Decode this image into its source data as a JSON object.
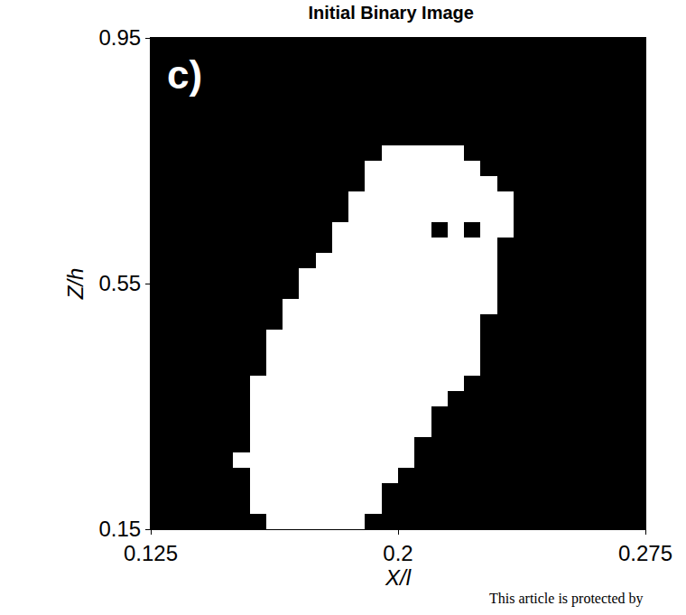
{
  "chart_data": {
    "type": "heatmap",
    "title": "Initial Binary Image",
    "x_label": "X/l",
    "y_label": "Z/h",
    "annotations": [
      "c)",
      "This article is protected by"
    ],
    "colors": [
      "#000000",
      "#ffffff"
    ],
    "xlim": [
      0.125,
      0.275
    ],
    "ylim": [
      0.15,
      0.95
    ],
    "xticks": [
      0.125,
      0.2,
      0.275
    ],
    "yticks": [
      0.15,
      0.55,
      0.95
    ],
    "x": [
      0.1275,
      0.1325,
      0.1375,
      0.1425,
      0.1475,
      0.1525,
      0.1575,
      0.1625,
      0.1675,
      0.1725,
      0.1775,
      0.1825,
      0.1875,
      0.1925,
      0.1975,
      0.2025,
      0.2075,
      0.2125,
      0.2175,
      0.2225,
      0.2275,
      0.2325,
      0.2375,
      0.2425,
      0.2475,
      0.2525,
      0.2575,
      0.2625,
      0.2675,
      0.2725
    ],
    "y": [
      0.1625,
      0.1875,
      0.2125,
      0.2375,
      0.2625,
      0.2875,
      0.3125,
      0.3375,
      0.3625,
      0.3875,
      0.4125,
      0.4375,
      0.4625,
      0.4875,
      0.5125,
      0.5375,
      0.5625,
      0.5875,
      0.6125,
      0.6375,
      0.6625,
      0.6875,
      0.7125,
      0.7375,
      0.7625,
      0.7875,
      0.8125,
      0.8375,
      0.8625,
      0.8875,
      0.9125,
      0.9375
    ],
    "cells": [
      [
        0,
        0,
        0,
        0,
        0,
        0,
        0,
        1,
        1,
        1,
        1,
        1,
        1,
        0,
        0,
        0,
        0,
        0,
        0,
        0,
        0,
        0,
        0,
        0,
        0,
        0,
        0,
        0,
        0,
        0
      ],
      [
        0,
        0,
        0,
        0,
        0,
        0,
        1,
        1,
        1,
        1,
        1,
        1,
        1,
        1,
        0,
        0,
        0,
        0,
        0,
        0,
        0,
        0,
        0,
        0,
        0,
        0,
        0,
        0,
        0,
        0
      ],
      [
        0,
        0,
        0,
        0,
        0,
        0,
        1,
        1,
        1,
        1,
        1,
        1,
        1,
        1,
        0,
        0,
        0,
        0,
        0,
        0,
        0,
        0,
        0,
        0,
        0,
        0,
        0,
        0,
        0,
        0
      ],
      [
        0,
        0,
        0,
        0,
        0,
        0,
        1,
        1,
        1,
        1,
        1,
        1,
        1,
        1,
        1,
        0,
        0,
        0,
        0,
        0,
        0,
        0,
        0,
        0,
        0,
        0,
        0,
        0,
        0,
        0
      ],
      [
        0,
        0,
        0,
        0,
        0,
        1,
        1,
        1,
        1,
        1,
        1,
        1,
        1,
        1,
        1,
        1,
        0,
        0,
        0,
        0,
        0,
        0,
        0,
        0,
        0,
        0,
        0,
        0,
        0,
        0
      ],
      [
        0,
        0,
        0,
        0,
        0,
        0,
        1,
        1,
        1,
        1,
        1,
        1,
        1,
        1,
        1,
        1,
        0,
        0,
        0,
        0,
        0,
        0,
        0,
        0,
        0,
        0,
        0,
        0,
        0,
        0
      ],
      [
        0,
        0,
        0,
        0,
        0,
        0,
        1,
        1,
        1,
        1,
        1,
        1,
        1,
        1,
        1,
        1,
        1,
        0,
        0,
        0,
        0,
        0,
        0,
        0,
        0,
        0,
        0,
        0,
        0,
        0
      ],
      [
        0,
        0,
        0,
        0,
        0,
        0,
        1,
        1,
        1,
        1,
        1,
        1,
        1,
        1,
        1,
        1,
        1,
        0,
        0,
        0,
        0,
        0,
        0,
        0,
        0,
        0,
        0,
        0,
        0,
        0
      ],
      [
        0,
        0,
        0,
        0,
        0,
        0,
        1,
        1,
        1,
        1,
        1,
        1,
        1,
        1,
        1,
        1,
        1,
        1,
        0,
        0,
        0,
        0,
        0,
        0,
        0,
        0,
        0,
        0,
        0,
        0
      ],
      [
        0,
        0,
        0,
        0,
        0,
        0,
        1,
        1,
        1,
        1,
        1,
        1,
        1,
        1,
        1,
        1,
        1,
        1,
        1,
        0,
        0,
        0,
        0,
        0,
        0,
        0,
        0,
        0,
        0,
        0
      ],
      [
        0,
        0,
        0,
        0,
        0,
        0,
        0,
        1,
        1,
        1,
        1,
        1,
        1,
        1,
        1,
        1,
        1,
        1,
        1,
        1,
        0,
        0,
        0,
        0,
        0,
        0,
        0,
        0,
        0,
        0
      ],
      [
        0,
        0,
        0,
        0,
        0,
        0,
        0,
        1,
        1,
        1,
        1,
        1,
        1,
        1,
        1,
        1,
        1,
        1,
        1,
        1,
        0,
        0,
        0,
        0,
        0,
        0,
        0,
        0,
        0,
        0
      ],
      [
        0,
        0,
        0,
        0,
        0,
        0,
        0,
        1,
        1,
        1,
        1,
        1,
        1,
        1,
        1,
        1,
        1,
        1,
        1,
        1,
        0,
        0,
        0,
        0,
        0,
        0,
        0,
        0,
        0,
        0
      ],
      [
        0,
        0,
        0,
        0,
        0,
        0,
        0,
        0,
        1,
        1,
        1,
        1,
        1,
        1,
        1,
        1,
        1,
        1,
        1,
        1,
        0,
        0,
        0,
        0,
        0,
        0,
        0,
        0,
        0,
        0
      ],
      [
        0,
        0,
        0,
        0,
        0,
        0,
        0,
        0,
        1,
        1,
        1,
        1,
        1,
        1,
        1,
        1,
        1,
        1,
        1,
        1,
        1,
        0,
        0,
        0,
        0,
        0,
        0,
        0,
        0,
        0
      ],
      [
        0,
        0,
        0,
        0,
        0,
        0,
        0,
        0,
        0,
        1,
        1,
        1,
        1,
        1,
        1,
        1,
        1,
        1,
        1,
        1,
        1,
        0,
        0,
        0,
        0,
        0,
        0,
        0,
        0,
        0
      ],
      [
        0,
        0,
        0,
        0,
        0,
        0,
        0,
        0,
        0,
        1,
        1,
        1,
        1,
        1,
        1,
        1,
        1,
        1,
        1,
        1,
        1,
        0,
        0,
        0,
        0,
        0,
        0,
        0,
        0,
        0
      ],
      [
        0,
        0,
        0,
        0,
        0,
        0,
        0,
        0,
        0,
        0,
        1,
        1,
        1,
        1,
        1,
        1,
        1,
        1,
        1,
        1,
        1,
        0,
        0,
        0,
        0,
        0,
        0,
        0,
        0,
        0
      ],
      [
        0,
        0,
        0,
        0,
        0,
        0,
        0,
        0,
        0,
        0,
        0,
        1,
        1,
        1,
        1,
        1,
        1,
        1,
        1,
        1,
        1,
        0,
        0,
        0,
        0,
        0,
        0,
        0,
        0,
        0
      ],
      [
        0,
        0,
        0,
        0,
        0,
        0,
        0,
        0,
        0,
        0,
        0,
        1,
        1,
        1,
        1,
        1,
        1,
        0,
        1,
        0,
        1,
        1,
        0,
        0,
        0,
        0,
        0,
        0,
        0,
        0
      ],
      [
        0,
        0,
        0,
        0,
        0,
        0,
        0,
        0,
        0,
        0,
        0,
        0,
        1,
        1,
        1,
        1,
        1,
        1,
        1,
        1,
        1,
        1,
        0,
        0,
        0,
        0,
        0,
        0,
        0,
        0
      ],
      [
        0,
        0,
        0,
        0,
        0,
        0,
        0,
        0,
        0,
        0,
        0,
        0,
        1,
        1,
        1,
        1,
        1,
        1,
        1,
        1,
        1,
        1,
        0,
        0,
        0,
        0,
        0,
        0,
        0,
        0
      ],
      [
        0,
        0,
        0,
        0,
        0,
        0,
        0,
        0,
        0,
        0,
        0,
        0,
        0,
        1,
        1,
        1,
        1,
        1,
        1,
        1,
        1,
        0,
        0,
        0,
        0,
        0,
        0,
        0,
        0,
        0
      ],
      [
        0,
        0,
        0,
        0,
        0,
        0,
        0,
        0,
        0,
        0,
        0,
        0,
        0,
        1,
        1,
        1,
        1,
        1,
        1,
        1,
        0,
        0,
        0,
        0,
        0,
        0,
        0,
        0,
        0,
        0
      ],
      [
        0,
        0,
        0,
        0,
        0,
        0,
        0,
        0,
        0,
        0,
        0,
        0,
        0,
        0,
        1,
        1,
        1,
        1,
        1,
        0,
        0,
        0,
        0,
        0,
        0,
        0,
        0,
        0,
        0,
        0
      ],
      [
        0,
        0,
        0,
        0,
        0,
        0,
        0,
        0,
        0,
        0,
        0,
        0,
        0,
        0,
        0,
        0,
        0,
        0,
        0,
        0,
        0,
        0,
        0,
        0,
        0,
        0,
        0,
        0,
        0,
        0
      ],
      [
        0,
        0,
        0,
        0,
        0,
        0,
        0,
        0,
        0,
        0,
        0,
        0,
        0,
        0,
        0,
        0,
        0,
        0,
        0,
        0,
        0,
        0,
        0,
        0,
        0,
        0,
        0,
        0,
        0,
        0
      ],
      [
        0,
        0,
        0,
        0,
        0,
        0,
        0,
        0,
        0,
        0,
        0,
        0,
        0,
        0,
        0,
        0,
        0,
        0,
        0,
        0,
        0,
        0,
        0,
        0,
        0,
        0,
        0,
        0,
        0,
        0
      ],
      [
        0,
        0,
        0,
        0,
        0,
        0,
        0,
        0,
        0,
        0,
        0,
        0,
        0,
        0,
        0,
        0,
        0,
        0,
        0,
        0,
        0,
        0,
        0,
        0,
        0,
        0,
        0,
        0,
        0,
        0
      ],
      [
        0,
        0,
        0,
        0,
        0,
        0,
        0,
        0,
        0,
        0,
        0,
        0,
        0,
        0,
        0,
        0,
        0,
        0,
        0,
        0,
        0,
        0,
        0,
        0,
        0,
        0,
        0,
        0,
        0,
        0
      ],
      [
        0,
        0,
        0,
        0,
        0,
        0,
        0,
        0,
        0,
        0,
        0,
        0,
        0,
        0,
        0,
        0,
        0,
        0,
        0,
        0,
        0,
        0,
        0,
        0,
        0,
        0,
        0,
        0,
        0,
        0
      ],
      [
        0,
        0,
        0,
        0,
        0,
        0,
        0,
        0,
        0,
        0,
        0,
        0,
        0,
        0,
        0,
        0,
        0,
        0,
        0,
        0,
        0,
        0,
        0,
        0,
        0,
        0,
        0,
        0,
        0,
        0
      ]
    ]
  }
}
